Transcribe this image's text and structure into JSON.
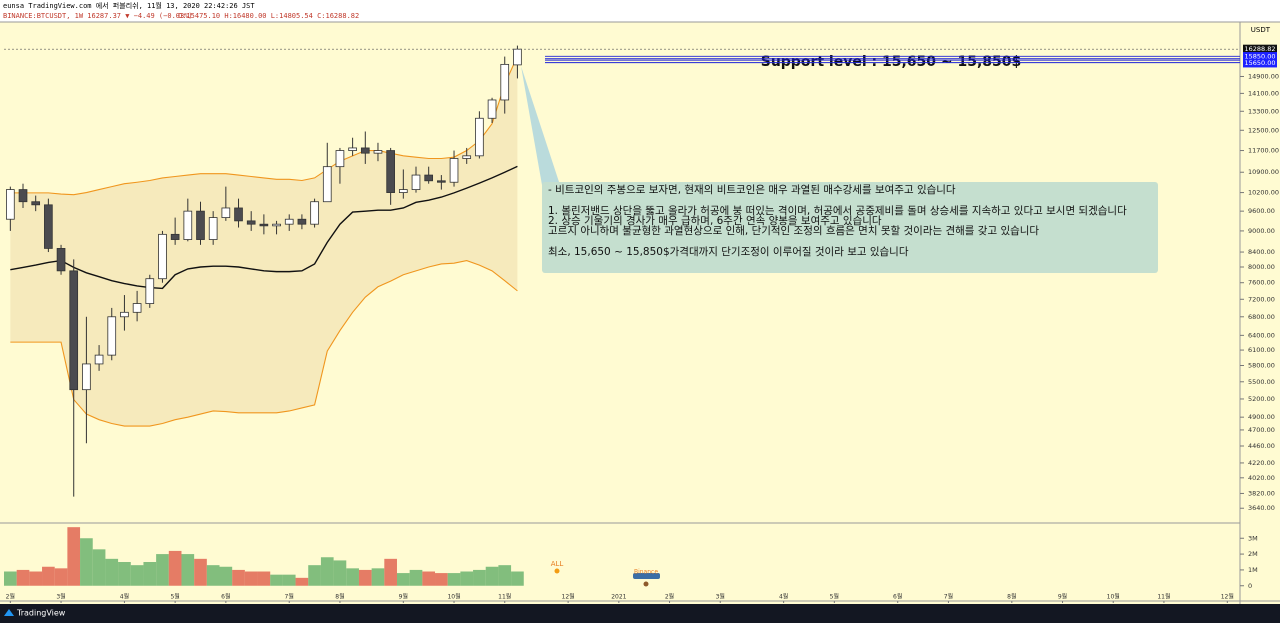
{
  "header": {
    "published": "eunsa TradingView.com 에서 퍼블리쉬, 11월 13, 2020 22:42:26 JST",
    "symbol": "BINANCE:BTCUSDT, 1W 16287.37 ▼ −4.49 (−0.03%)",
    "ohlc": "O:15475.10 H:16480.00 L:14805.54 C:16288.82"
  },
  "currency": "USDT",
  "footer": "TradingView",
  "annotation": {
    "lines": [
      "- 비트코인의 주봉으로 보자면, 현재의 비트코인은 매우 과열된 매수강세를 보여주고 있습니다",
      "1. 볼린저밴드 상단을 뚫고 올라가 허공에 붕 떠있는 격이며, 허공에서 공중제비를 돌며 상승세를 지속하고 있다고 보시면 되겠습니다",
      "2. 상승 기울기의 경사가 매우 급하며, 6주간 연속 양봉을 보여주고 있습니다",
      "고르지 아니하며 불균형한 과열현상으로 인해, 단기적인 조정의 흐름은 면치 못할 것이라는 견해를 갖고 있습니다",
      "최소, 15,650 ~ 15,850$가격대까지 단기조정이 이루어질 것이라 보고 있습니다"
    ],
    "support": "Support level : 15,650 ~  15,850$"
  },
  "markers": [
    "ALL",
    "Binance"
  ],
  "chart_data": {
    "type": "candlestick",
    "log_scale": true,
    "open": [
      9350,
      10300,
      9900,
      9800,
      8500,
      7900,
      5360,
      5830,
      6000,
      6800,
      6900,
      7100,
      7700,
      8900,
      8750,
      9600,
      8750,
      9400,
      9700,
      9300,
      9200,
      9150,
      9200,
      9350,
      9200,
      9900,
      11100,
      11700,
      11800,
      11600,
      11700,
      10200,
      10300,
      10800,
      10600,
      10550,
      11400,
      11500,
      13000,
      13800,
      15475.1
    ],
    "high": [
      10400,
      10500,
      10100,
      10000,
      8600,
      8200,
      6800,
      6200,
      7000,
      7300,
      7400,
      7800,
      9000,
      9400,
      10000,
      9900,
      9600,
      10400,
      10000,
      9600,
      9500,
      9300,
      9500,
      9500,
      10000,
      12000,
      11800,
      12200,
      12450,
      12000,
      11800,
      11000,
      11100,
      11100,
      10800,
      11700,
      11800,
      13300,
      13900,
      15900,
      16480
    ],
    "low": [
      9000,
      9700,
      9600,
      8400,
      7800,
      3780,
      4500,
      5700,
      5900,
      6500,
      6700,
      7000,
      7600,
      8600,
      8700,
      8600,
      8600,
      9300,
      9100,
      9000,
      8900,
      8900,
      9000,
      9050,
      9100,
      9900,
      10500,
      11500,
      11200,
      11300,
      9800,
      10000,
      10200,
      10500,
      10300,
      10400,
      11200,
      11400,
      12800,
      13200,
      14805.54
    ],
    "close": [
      10300,
      9900,
      9800,
      8500,
      7900,
      5360,
      5830,
      6000,
      6800,
      6900,
      7100,
      7700,
      8900,
      8750,
      9600,
      8750,
      9400,
      9700,
      9300,
      9200,
      9150,
      9200,
      9350,
      9200,
      9900,
      11100,
      11700,
      11800,
      11600,
      11700,
      10200,
      10300,
      10800,
      10600,
      10550,
      11400,
      11500,
      13000,
      13800,
      15500,
      16288.82
    ],
    "bands": {
      "upper": [
        10190,
        10190,
        10190,
        10190,
        10150,
        10130,
        10200,
        10300,
        10400,
        10500,
        10550,
        10610,
        10700,
        10750,
        10800,
        10850,
        10850,
        10850,
        10800,
        10750,
        10700,
        10650,
        10650,
        10610,
        10700,
        11000,
        11300,
        11500,
        11700,
        11700,
        11600,
        11500,
        11450,
        11400,
        11400,
        11450,
        11700,
        12080,
        12770,
        14530,
        15920
      ],
      "middle": [
        7930,
        7990,
        8050,
        8120,
        8170,
        7990,
        7850,
        7750,
        7650,
        7580,
        7520,
        7480,
        7460,
        7800,
        7950,
        8000,
        8020,
        8020,
        8000,
        7950,
        7900,
        7880,
        7880,
        7900,
        8080,
        8670,
        9200,
        9570,
        9600,
        9630,
        9630,
        9700,
        9880,
        9950,
        10050,
        10190,
        10350,
        10520,
        10700,
        10900,
        11110
      ],
      "lower": [
        6260,
        6260,
        6260,
        6260,
        6260,
        5190,
        4950,
        4860,
        4800,
        4760,
        4760,
        4760,
        4800,
        4860,
        4900,
        4950,
        5000,
        4990,
        4970,
        4970,
        4970,
        4970,
        5000,
        5050,
        5100,
        6080,
        6500,
        6900,
        7250,
        7500,
        7640,
        7800,
        7900,
        8000,
        8080,
        8100,
        8170,
        8050,
        7900,
        7650,
        7400
      ]
    },
    "volume": [
      0.9,
      1.0,
      0.9,
      1.2,
      1.1,
      3.7,
      3.0,
      2.3,
      1.7,
      1.5,
      1.3,
      1.5,
      2.0,
      2.2,
      2.0,
      1.7,
      1.3,
      1.2,
      1.0,
      0.9,
      0.9,
      0.7,
      0.7,
      0.5,
      1.3,
      1.8,
      1.6,
      1.1,
      1.0,
      1.1,
      1.7,
      0.8,
      1.0,
      0.9,
      0.8,
      0.8,
      0.9,
      1.0,
      1.2,
      1.3,
      0.9
    ],
    "up_color": "#ffffff",
    "down_color": "#4b4b4f",
    "band_color": "#f0961e",
    "middle_color": "#111111",
    "volume_up_color": "#6cb36e",
    "volume_down_color": "#e06552",
    "ylim": [
      3480,
      17800
    ],
    "yticks": [
      {
        "value": 14900,
        "label": "14900.00"
      },
      {
        "value": 14100,
        "label": "14100.00"
      },
      {
        "value": 13300,
        "label": "13300.00"
      },
      {
        "value": 12500,
        "label": "12500.00"
      },
      {
        "value": 11700,
        "label": "11700.00"
      },
      {
        "value": 10900,
        "label": "10900.00"
      },
      {
        "value": 10200,
        "label": "10200.00"
      },
      {
        "value": 9600,
        "label": "9600.00"
      },
      {
        "value": 9000,
        "label": "9000.00"
      },
      {
        "value": 8400,
        "label": "8400.00"
      },
      {
        "value": 8000,
        "label": "8000.00"
      },
      {
        "value": 7600,
        "label": "7600.00"
      },
      {
        "value": 7200,
        "label": "7200.00"
      },
      {
        "value": 6800,
        "label": "6800.00"
      },
      {
        "value": 6400,
        "label": "6400.00"
      },
      {
        "value": 6100,
        "label": "6100.00"
      },
      {
        "value": 5800,
        "label": "5800.00"
      },
      {
        "value": 5500,
        "label": "5500.00"
      },
      {
        "value": 5200,
        "label": "5200.00"
      },
      {
        "value": 4900,
        "label": "4900.00"
      },
      {
        "value": 4700,
        "label": "4700.00"
      },
      {
        "value": 4460,
        "label": "4460.00"
      },
      {
        "value": 4220,
        "label": "4220.00"
      },
      {
        "value": 4020,
        "label": "4020.00"
      },
      {
        "value": 3820,
        "label": "3820.00"
      },
      {
        "value": 3640,
        "label": "3640.00"
      }
    ],
    "price_labels": [
      {
        "value": 16288.82,
        "label": "16288.82"
      },
      {
        "value": 15850,
        "label": "15850.00"
      },
      {
        "value": 15650,
        "label": "15650.00"
      }
    ],
    "volume_ylim": [
      -0.9,
      3.9
    ],
    "volume_ticks": [
      0,
      {
        "value": 1,
        "label": "1M"
      },
      {
        "value": 2,
        "label": "2M"
      },
      {
        "value": 3,
        "label": "3M"
      }
    ],
    "xlim": [
      -0.5,
      97
    ],
    "xticks": [
      {
        "value": 0,
        "label": "2월"
      },
      {
        "value": 4,
        "label": "3월"
      },
      {
        "value": 9,
        "label": "4월"
      },
      {
        "value": 13,
        "label": "5월"
      },
      {
        "value": 17,
        "label": "6월"
      },
      {
        "value": 22,
        "label": "7월"
      },
      {
        "value": 26,
        "label": "8월"
      },
      {
        "value": 31,
        "label": "9월"
      },
      {
        "value": 35,
        "label": "10월"
      },
      {
        "value": 39,
        "label": "11월"
      },
      {
        "value": 44,
        "label": "12월"
      },
      {
        "value": 48,
        "label": "2021"
      },
      {
        "value": 52,
        "label": "2월"
      },
      {
        "value": 56,
        "label": "3월"
      },
      {
        "value": 61,
        "label": "4월"
      },
      {
        "value": 65,
        "label": "5월"
      },
      {
        "value": 70,
        "label": "6월"
      },
      {
        "value": 74,
        "label": "7월"
      },
      {
        "value": 79,
        "label": "8월"
      },
      {
        "value": 83,
        "label": "9월"
      },
      {
        "value": 87,
        "label": "10월"
      },
      {
        "value": 91,
        "label": "11월"
      },
      {
        "value": 96,
        "label": "12월"
      }
    ]
  }
}
